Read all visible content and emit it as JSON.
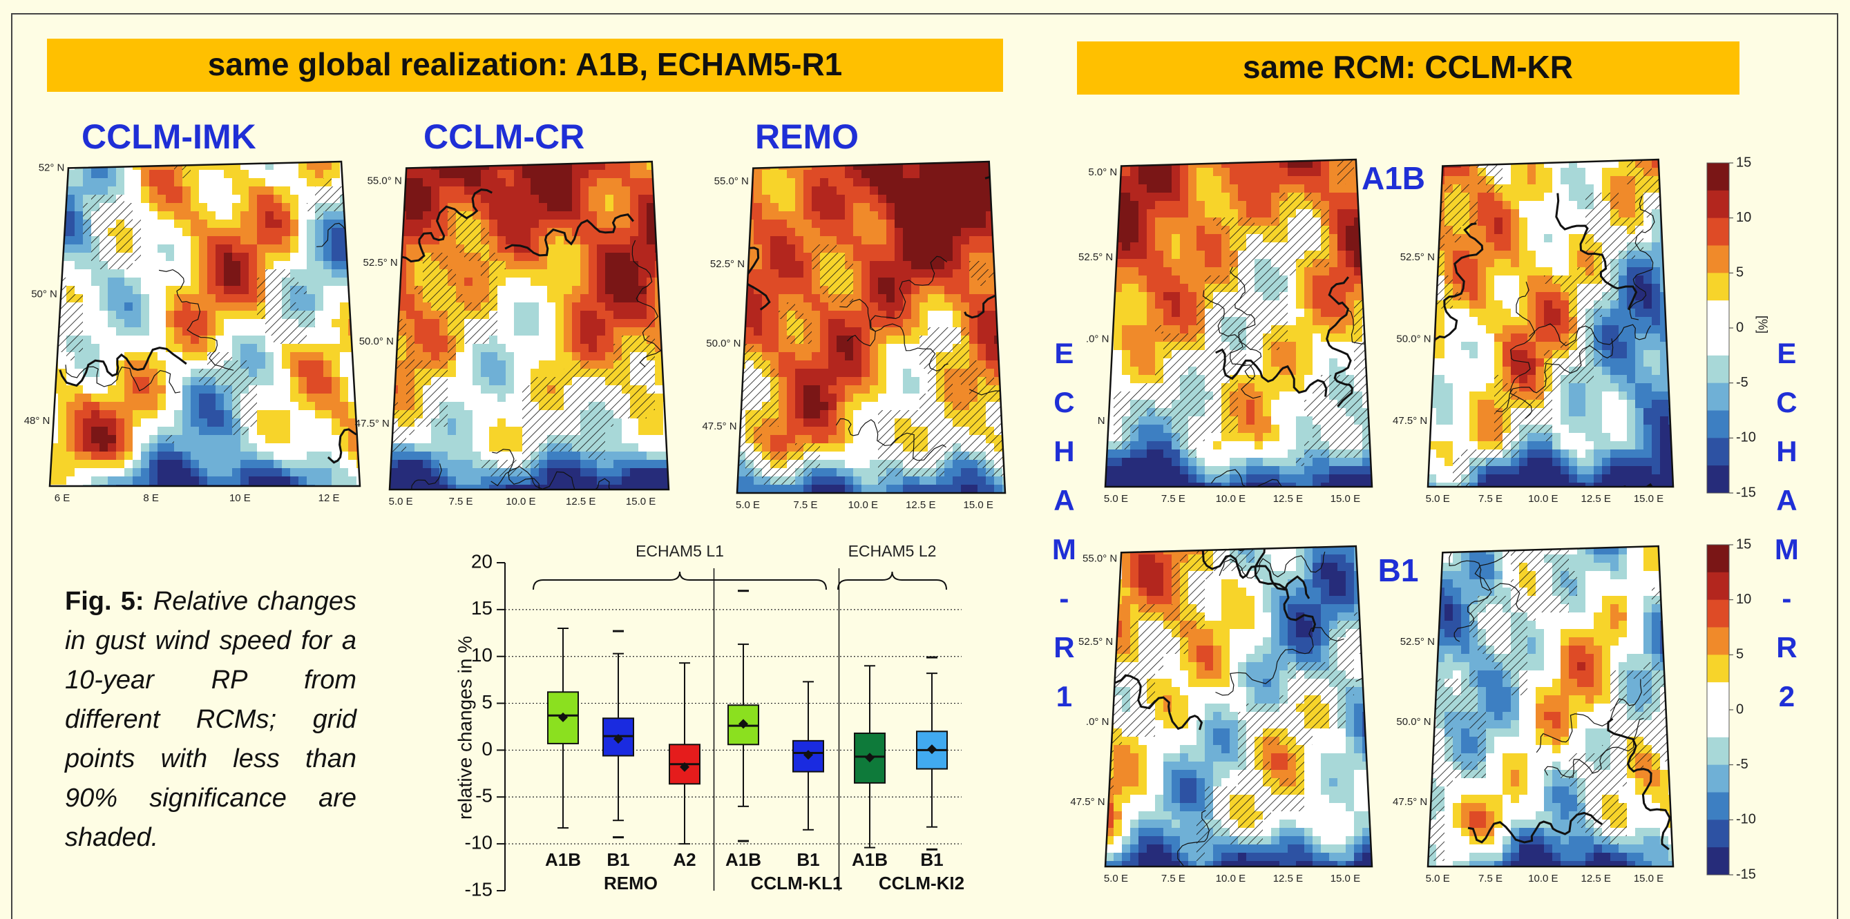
{
  "left_panel": {
    "header": "same global realization:  A1B,  ECHAM5-R1",
    "maps": [
      {
        "title": "CCLM-IMK",
        "lat_labels": [
          "52° N",
          "50° N",
          "48° N"
        ],
        "lon_labels": [
          "6 E",
          "8 E",
          "10 E",
          "12 E"
        ]
      },
      {
        "title": "CCLM-CR",
        "lat_labels": [
          "55.0° N",
          "52.5° N",
          "50.0° N",
          "47.5° N"
        ],
        "lon_labels": [
          "5.0 E",
          "7.5 E",
          "10.0 E",
          "12.5 E",
          "15.0 E"
        ]
      },
      {
        "title": "REMO",
        "lat_labels": [
          "55.0° N",
          "52.5° N",
          "50.0° N",
          "47.5° N"
        ],
        "lon_labels": [
          "5.0 E",
          "7.5 E",
          "10.0 E",
          "12.5 E",
          "15.0 E"
        ]
      }
    ]
  },
  "right_panel": {
    "header": "same RCM:  CCLM-KR",
    "row_labels": [
      "A1B",
      "B1"
    ],
    "column_labels": [
      "ECHAM-R1",
      "ECHAM-R2"
    ],
    "maps": [
      {
        "lat_labels": [
          "5.0° N",
          "52.5° N",
          ".0° N",
          "N"
        ],
        "lon_labels": [
          "5.0 E",
          "7.5 E",
          "10.0 E",
          "12.5 E",
          "15.0 E"
        ]
      },
      {
        "lat_labels": [
          "52.5° N",
          "50.0° N",
          "47.5° N"
        ],
        "lon_labels": [
          "5.0 E",
          "7.5 E",
          "10.0 E",
          "12.5 E",
          "15.0 E"
        ]
      },
      {
        "lat_labels": [
          "55.0° N",
          "52.5° N",
          ".0° N",
          "47.5° N"
        ],
        "lon_labels": [
          "5.0 E",
          "7.5 E",
          "10.0 E",
          "12.5 E",
          "15.0 E"
        ]
      },
      {
        "lat_labels": [
          "52.5° N",
          "50.0° N",
          "47.5° N"
        ],
        "lon_labels": [
          "5.0 E",
          "7.5 E",
          "10.0 E",
          "12.5 E",
          "15.0 E"
        ]
      }
    ],
    "colorbar": {
      "lim": [
        -15,
        15
      ],
      "ticks": [
        15,
        10,
        5,
        0,
        -5,
        -10,
        -15
      ],
      "unit": "[%]",
      "colors": [
        "#7a1616",
        "#b3261e",
        "#de4b26",
        "#f08a2a",
        "#f7d42a",
        "#ffffff",
        "#ffffff",
        "#a8d8d8",
        "#6fb0d6",
        "#3d7fc2",
        "#2d52a3",
        "#262c7a"
      ]
    }
  },
  "caption": {
    "label": "Fig. 5:",
    "text": "Relative changes in gust wind speed  for a 10-year RP from different RCMs; grid points with less than 90% significance are shaded."
  },
  "chart_data": {
    "type": "box",
    "y_label": "relative changes in %",
    "ylim": [
      -15,
      20
    ],
    "yticks": [
      -15,
      -10,
      -5,
      0,
      5,
      10,
      15,
      20
    ],
    "grid": true,
    "brackets": [
      {
        "label": "ECHAM5 L1"
      },
      {
        "label": "ECHAM5 L2"
      }
    ],
    "groups": [
      {
        "name": "REMO",
        "boxes": [
          {
            "name": "A1B",
            "color": "#8be01f",
            "low": -8.3,
            "q1": 0.7,
            "median": 3.7,
            "q3": 6.2,
            "high": 13,
            "mean": 3.5,
            "outliers": []
          },
          {
            "name": "B1",
            "color": "#1a2be0",
            "low": -7.5,
            "q1": -0.6,
            "median": 1.5,
            "q3": 3.4,
            "high": 10.3,
            "mean": 1.2,
            "outliers": [
              12.7,
              -9.3
            ]
          },
          {
            "name": "A2",
            "color": "#e51c1c",
            "low": -10,
            "q1": -3.6,
            "median": -1.5,
            "q3": 0.6,
            "high": 9.3,
            "mean": -1.8,
            "outliers": []
          }
        ]
      },
      {
        "name": "CCLM-KL1",
        "boxes": [
          {
            "name": "A1B",
            "color": "#8be01f",
            "low": -6,
            "q1": 0.6,
            "median": 2.6,
            "q3": 4.8,
            "high": 11.3,
            "mean": 2.8,
            "outliers": [
              17,
              -9.7
            ]
          },
          {
            "name": "B1",
            "color": "#1a2be0",
            "low": -8.5,
            "q1": -2.3,
            "median": -0.3,
            "q3": 1,
            "high": 7.3,
            "mean": -0.5,
            "outliers": []
          }
        ]
      },
      {
        "name": "CCLM-KI2",
        "boxes": [
          {
            "name": "A1B",
            "color": "#0e7a3a",
            "low": -10.4,
            "q1": -3.5,
            "median": -0.7,
            "q3": 1.8,
            "high": 9,
            "mean": -0.8,
            "outliers": []
          },
          {
            "name": "B1",
            "color": "#41aaf0",
            "low": -8.2,
            "q1": -2,
            "median": 0,
            "q3": 2,
            "high": 8.2,
            "mean": 0.1,
            "outliers": [
              9.9,
              -10.6
            ]
          }
        ]
      }
    ]
  }
}
